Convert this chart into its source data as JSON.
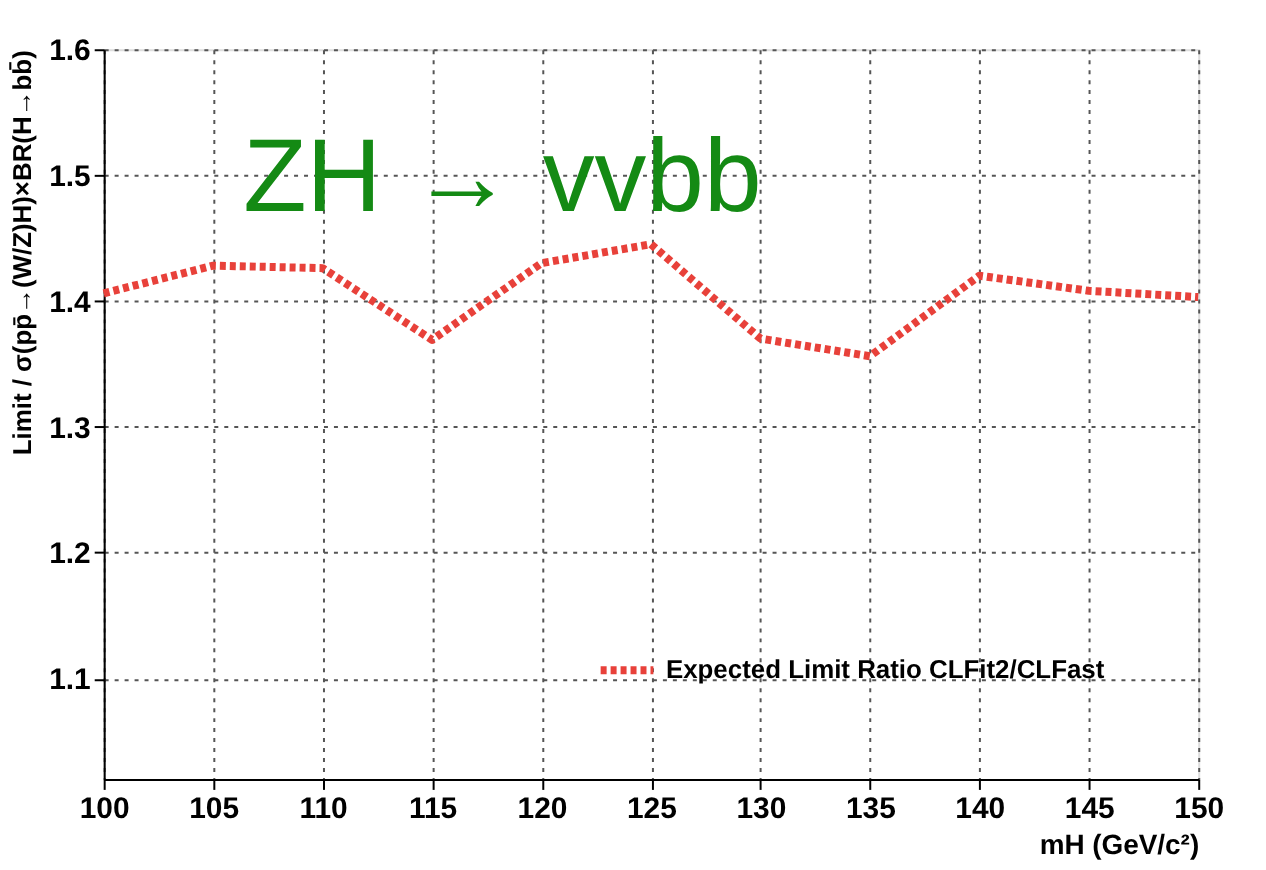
{
  "chart_data": {
    "type": "line",
    "xlabel": "mH (GeV/c²)",
    "ylabel": "Limit / σ(pp̄→(W/Z)H)×BR(H→bb̄)",
    "annotations": [
      "ZH → vvbb"
    ],
    "x": [
      100,
      105,
      110,
      115,
      120,
      125,
      130,
      135,
      140,
      145,
      150
    ],
    "series": [
      {
        "name": "Expected Limit Ratio CLFit2/CLFast",
        "color": "#e8413a",
        "values": [
          1.406,
          1.428,
          1.426,
          1.369,
          1.43,
          1.445,
          1.37,
          1.356,
          1.42,
          1.408,
          1.403
        ]
      }
    ],
    "xlim": [
      100,
      150
    ],
    "xticks": [
      100,
      105,
      110,
      115,
      120,
      125,
      130,
      135,
      140,
      145,
      150
    ],
    "ylim": [
      1.02,
      1.6
    ],
    "yticks": [
      1.1,
      1.2,
      1.3,
      1.4,
      1.5,
      1.6
    ],
    "grid": true,
    "legend": "bottom right",
    "line_style": "dotted",
    "marker": "none"
  }
}
